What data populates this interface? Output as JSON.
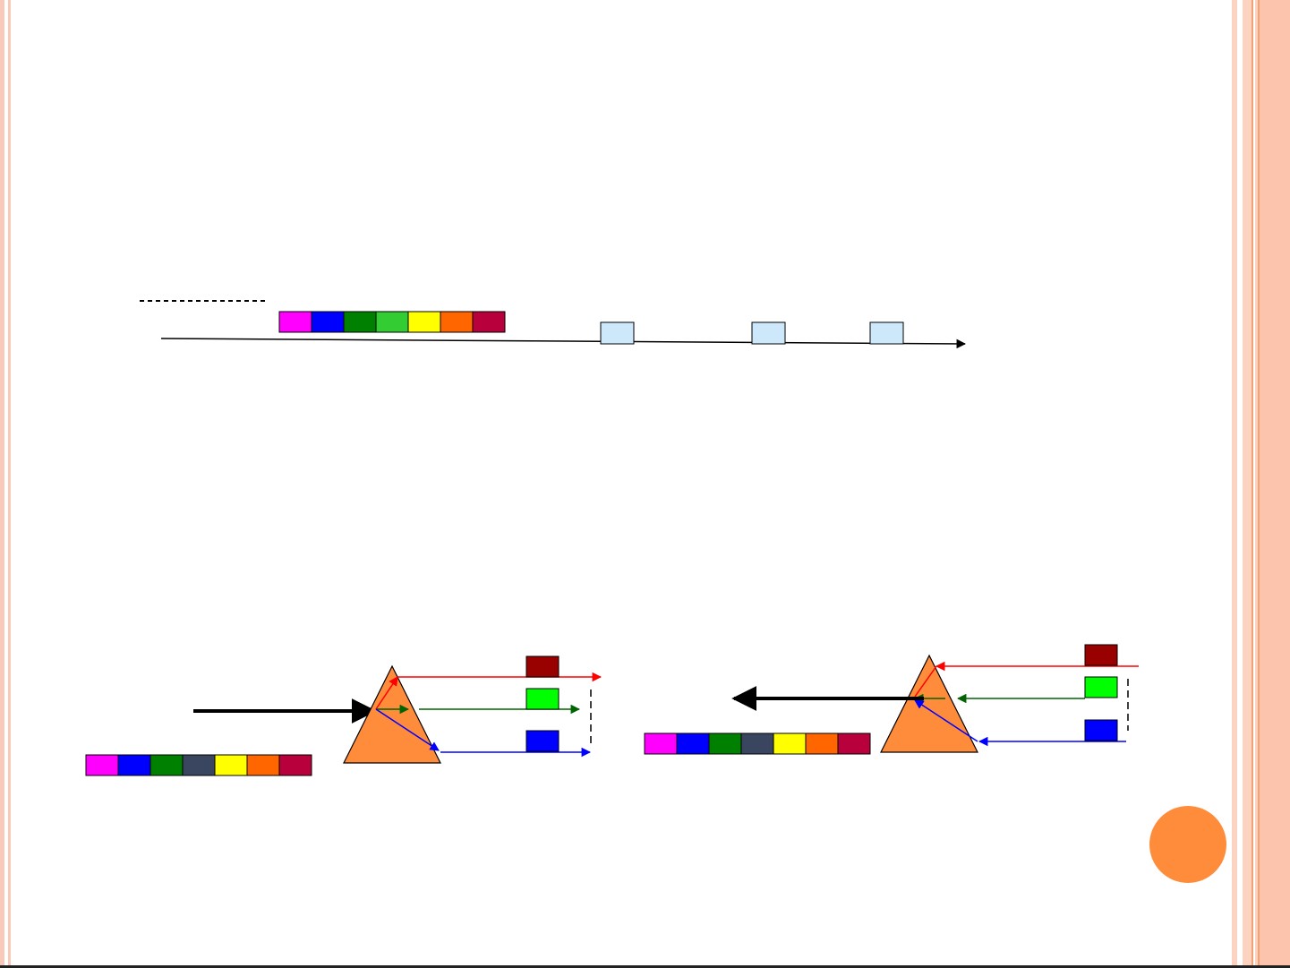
{
  "theme": {
    "border_pink": "#f8c8b8",
    "border_orange": "#f5a070",
    "stripe_light": "#fcd2c0",
    "page_badge": "#ff8c3a",
    "prism_fill": "#ff8c3a",
    "timeline_box": "#cce8fa"
  },
  "spectrum_bar_top": [
    "#ff00ff",
    "#0000ff",
    "#008000",
    "#33cc33",
    "#ffff00",
    "#ff6600",
    "#b8003c"
  ],
  "spectrum_bar_bottom": [
    "#ff00ff",
    "#0000ff",
    "#008000",
    "#3a4660",
    "#ffff00",
    "#ff6600",
    "#b8003c"
  ],
  "timeline": {
    "marker_count": 3
  },
  "prism_outputs": {
    "swatches": [
      "#990000",
      "#00ff00",
      "#0000ff"
    ],
    "rays": [
      "#ff0000",
      "#006400",
      "#0000ff"
    ]
  },
  "slide_texts": {}
}
